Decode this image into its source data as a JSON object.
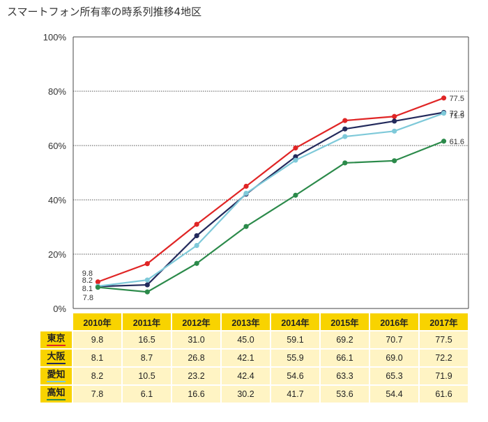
{
  "title": "スマートフォン所有率の時系列推移4地区",
  "chart_data": {
    "type": "line",
    "title": "スマートフォン所有率の時系列推移4地区",
    "categories": [
      "2010年",
      "2011年",
      "2012年",
      "2013年",
      "2014年",
      "2015年",
      "2016年",
      "2017年"
    ],
    "ylim": [
      0,
      100
    ],
    "yticks": [
      "0%",
      "20%",
      "40%",
      "60%",
      "80%",
      "100%"
    ],
    "ytick_values": [
      0,
      20,
      40,
      60,
      80,
      100
    ],
    "series": [
      {
        "name": "東京",
        "color": "#e02525",
        "values": [
          9.8,
          16.5,
          31.0,
          45.0,
          59.1,
          69.2,
          70.7,
          77.5
        ],
        "start_label": "9.8",
        "end_label": "77.5"
      },
      {
        "name": "大阪",
        "color": "#232a5c",
        "values": [
          8.1,
          8.7,
          26.8,
          42.1,
          55.9,
          66.1,
          69.0,
          72.2
        ],
        "start_label": "8.1",
        "end_label": "72.2"
      },
      {
        "name": "愛知",
        "color": "#7ec9d9",
        "values": [
          8.2,
          10.5,
          23.2,
          42.4,
          54.6,
          63.3,
          65.3,
          71.9
        ],
        "start_label": "8.2",
        "end_label": "71.9"
      },
      {
        "name": "高知",
        "color": "#2b8a4a",
        "values": [
          7.8,
          6.1,
          16.6,
          30.2,
          41.7,
          53.6,
          54.4,
          61.6
        ],
        "start_label": "7.8",
        "end_label": "61.6"
      }
    ]
  },
  "table": {
    "headers": [
      "2010年",
      "2011年",
      "2012年",
      "2013年",
      "2014年",
      "2015年",
      "2016年",
      "2017年"
    ],
    "rows": [
      {
        "name": "東京",
        "color": "#e02525",
        "values": [
          "9.8",
          "16.5",
          "31.0",
          "45.0",
          "59.1",
          "69.2",
          "70.7",
          "77.5"
        ]
      },
      {
        "name": "大阪",
        "color": "#232a5c",
        "values": [
          "8.1",
          "8.7",
          "26.8",
          "42.1",
          "55.9",
          "66.1",
          "69.0",
          "72.2"
        ]
      },
      {
        "name": "愛知",
        "color": "#7ec9d9",
        "values": [
          "8.2",
          "10.5",
          "23.2",
          "42.4",
          "54.6",
          "63.3",
          "65.3",
          "71.9"
        ]
      },
      {
        "name": "高知",
        "color": "#2b8a4a",
        "values": [
          "7.8",
          "6.1",
          "16.6",
          "30.2",
          "41.7",
          "53.6",
          "54.4",
          "61.6"
        ]
      }
    ]
  }
}
